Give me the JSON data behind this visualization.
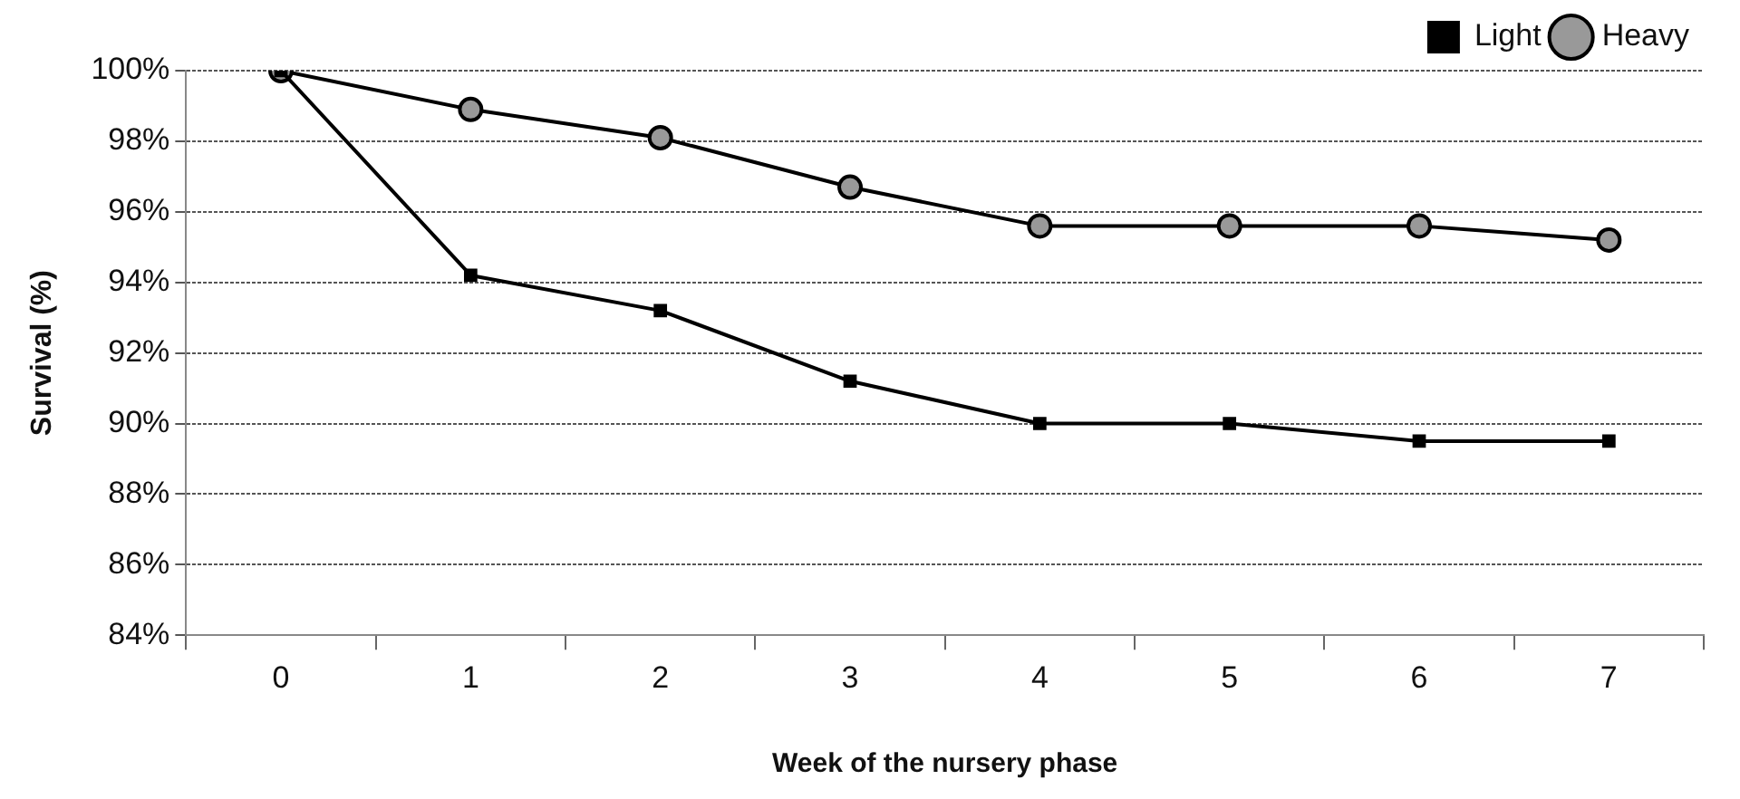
{
  "chart_data": {
    "type": "line",
    "xlabel": "Week of the nursery phase",
    "ylabel": "Survival (%)",
    "categories": [
      "0",
      "1",
      "2",
      "3",
      "4",
      "5",
      "6",
      "7"
    ],
    "series": [
      {
        "name": "Light",
        "color": "#000000",
        "marker": "square",
        "values": [
          100,
          94.2,
          93.2,
          91.2,
          90.0,
          90.0,
          89.5,
          89.5
        ]
      },
      {
        "name": "Heavy",
        "color": "#000000",
        "marker": "circle",
        "values": [
          100,
          98.9,
          98.1,
          96.7,
          95.6,
          95.6,
          95.6,
          95.2
        ]
      }
    ],
    "ylim": [
      84,
      100
    ],
    "yticks": [
      {
        "value": 84,
        "label": "84%"
      },
      {
        "value": 86,
        "label": "86%"
      },
      {
        "value": 88,
        "label": "88%"
      },
      {
        "value": 90,
        "label": "90%"
      },
      {
        "value": 92,
        "label": "92%"
      },
      {
        "value": 94,
        "label": "94%"
      },
      {
        "value": 96,
        "label": "96%"
      },
      {
        "value": 98,
        "label": "98%"
      },
      {
        "value": 100,
        "label": "100%"
      }
    ],
    "grid": "y",
    "legend": "top right",
    "line_style": "solid"
  }
}
